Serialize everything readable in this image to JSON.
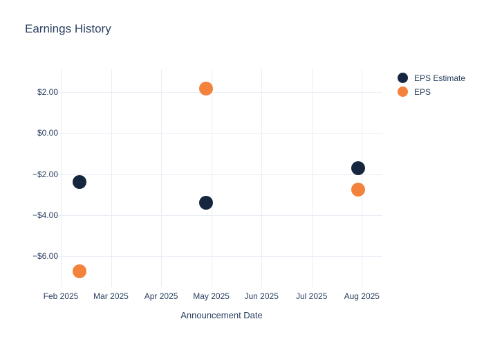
{
  "title": "Earnings History",
  "chart_data": {
    "type": "scatter",
    "title": "Earnings History",
    "xlabel": "Announcement Date",
    "ylabel": "",
    "grid": true,
    "grid_color": "#e9edf4",
    "text_color": "#2a3f5f",
    "background_color": "#ffffff",
    "legend_position": "top-right",
    "x_tick_labels": [
      "Feb 2025",
      "Mar 2025",
      "Apr 2025",
      "May 2025",
      "Jun 2025",
      "Jul 2025",
      "Aug 2025"
    ],
    "y_tick_labels": [
      "$2.00",
      "$0.00",
      "−$2.00",
      "−$4.00",
      "−$6.00"
    ],
    "y_tick_values": [
      2,
      0,
      -2,
      -4,
      -6
    ],
    "xlim_months": [
      0,
      6.41
    ],
    "ylim": [
      -7.5,
      3.1
    ],
    "series": [
      {
        "name": "EPS Estimate",
        "color": "#16263e",
        "points": [
          {
            "x_month": 0.37,
            "y": -2.37
          },
          {
            "x_month": 2.9,
            "y": -3.38
          },
          {
            "x_month": 5.92,
            "y": -1.7
          }
        ]
      },
      {
        "name": "EPS",
        "color": "#f3823d",
        "points": [
          {
            "x_month": 0.37,
            "y": -6.71
          },
          {
            "x_month": 2.9,
            "y": 2.17
          },
          {
            "x_month": 5.92,
            "y": -2.74
          }
        ]
      }
    ]
  }
}
